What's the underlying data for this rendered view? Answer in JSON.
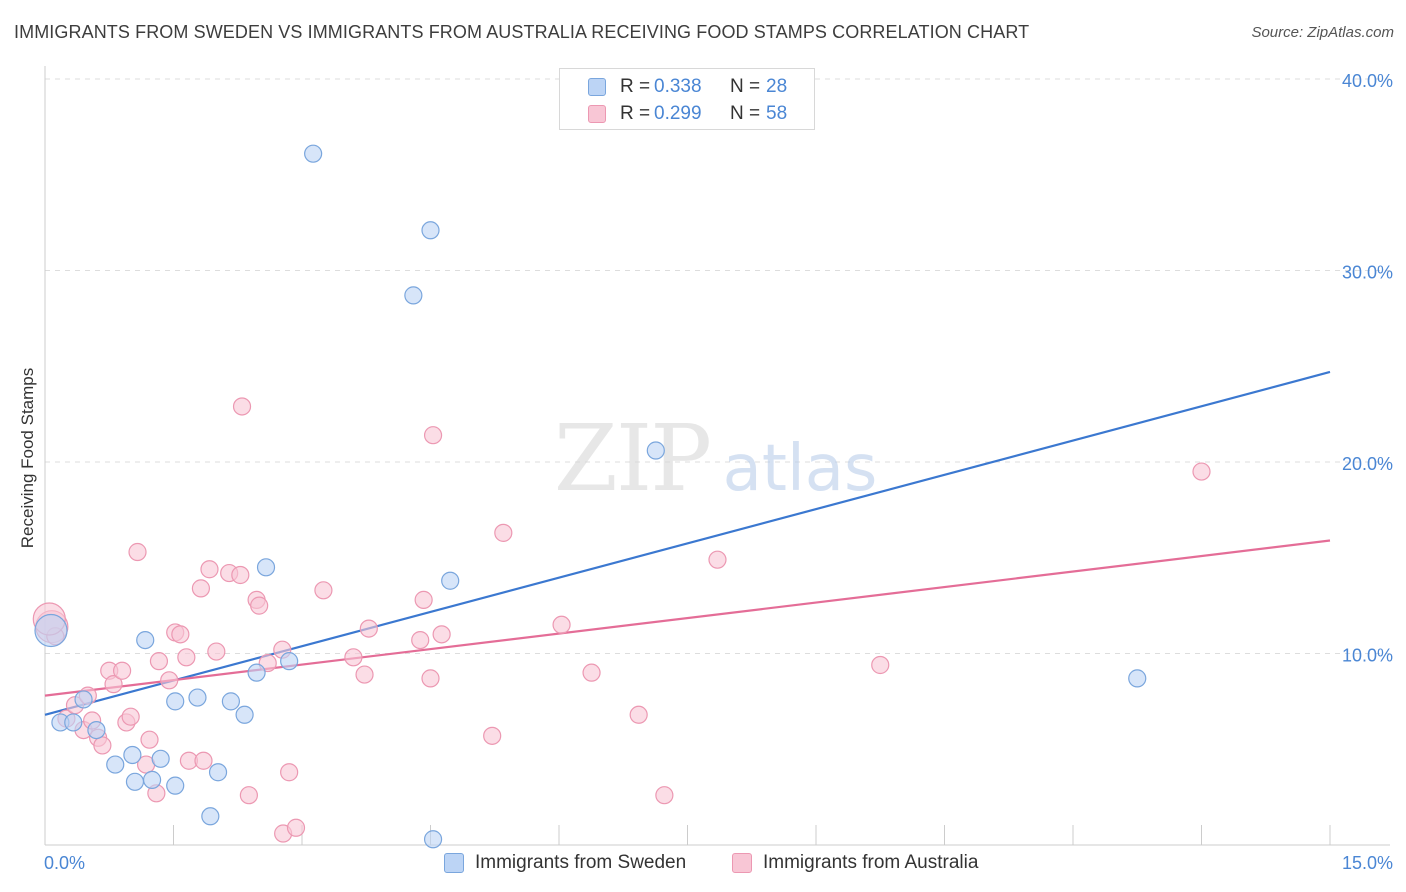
{
  "title": "IMMIGRANTS FROM SWEDEN VS IMMIGRANTS FROM AUSTRALIA RECEIVING FOOD STAMPS CORRELATION CHART",
  "source": "Source: ZipAtlas.com",
  "watermark": {
    "zip": "ZIP",
    "atlas": "atlas"
  },
  "legend_top": {
    "rows": [
      {
        "r_label": "R =",
        "r_value": "0.338",
        "n_label": "N =",
        "n_value": "28"
      },
      {
        "r_label": "R =",
        "r_value": "0.299",
        "n_label": "N =",
        "n_value": "58"
      }
    ]
  },
  "legend_bottom": [
    "Immigrants from Sweden",
    "Immigrants from Australia"
  ],
  "colors": {
    "sweden_fill": "#bcd4f5",
    "sweden_stroke": "#7aa6dd",
    "sweden_line": "#3b78d0",
    "australia_fill": "#f8c6d5",
    "australia_stroke": "#ec98b2",
    "australia_line": "#e46d97",
    "tick_label": "#4a86d4",
    "grid": "#dddddd"
  },
  "chart_data": {
    "type": "scatter",
    "title": "IMMIGRANTS FROM SWEDEN VS IMMIGRANTS FROM AUSTRALIA RECEIVING FOOD STAMPS CORRELATION CHART",
    "xlabel": "",
    "ylabel": "Receiving Food Stamps",
    "xlim": [
      0,
      15
    ],
    "ylim": [
      0,
      40
    ],
    "x_tick_labels": [
      "0.0%",
      "15.0%"
    ],
    "y_ticks": [
      10,
      20,
      30,
      40
    ],
    "y_tick_labels": [
      "10.0%",
      "20.0%",
      "30.0%",
      "40.0%"
    ],
    "grid": true,
    "legend_position": "top-center",
    "series": [
      {
        "name": "Immigrants from Sweden",
        "r": 0.338,
        "n": 28,
        "trend": {
          "x": [
            0,
            15
          ],
          "y": [
            6.8,
            24.7
          ]
        },
        "points": [
          [
            0.07,
            11.2
          ],
          [
            0.18,
            6.4
          ],
          [
            0.33,
            6.4
          ],
          [
            0.45,
            7.6
          ],
          [
            0.6,
            6.0
          ],
          [
            0.82,
            4.2
          ],
          [
            1.02,
            4.7
          ],
          [
            1.05,
            3.3
          ],
          [
            1.17,
            10.7
          ],
          [
            1.25,
            3.4
          ],
          [
            1.35,
            4.5
          ],
          [
            1.52,
            3.1
          ],
          [
            1.52,
            7.5
          ],
          [
            1.78,
            7.7
          ],
          [
            1.93,
            1.5
          ],
          [
            2.02,
            3.8
          ],
          [
            2.17,
            7.5
          ],
          [
            2.33,
            6.8
          ],
          [
            2.47,
            9.0
          ],
          [
            2.58,
            14.5
          ],
          [
            2.85,
            9.6
          ],
          [
            3.13,
            36.1
          ],
          [
            4.3,
            28.7
          ],
          [
            4.5,
            32.1
          ],
          [
            4.53,
            0.3
          ],
          [
            4.73,
            13.8
          ],
          [
            7.13,
            20.6
          ],
          [
            12.75,
            8.7
          ]
        ]
      },
      {
        "name": "Immigrants from Australia",
        "r": 0.299,
        "n": 58,
        "trend": {
          "x": [
            0,
            15
          ],
          "y": [
            7.8,
            15.9
          ]
        },
        "points": [
          [
            0.08,
            11.4
          ],
          [
            0.12,
            10.9
          ],
          [
            0.25,
            6.6
          ],
          [
            0.35,
            7.3
          ],
          [
            0.45,
            6.0
          ],
          [
            0.5,
            7.8
          ],
          [
            0.55,
            6.5
          ],
          [
            0.62,
            5.6
          ],
          [
            0.67,
            5.2
          ],
          [
            0.75,
            9.1
          ],
          [
            0.8,
            8.4
          ],
          [
            0.9,
            9.1
          ],
          [
            0.95,
            6.4
          ],
          [
            1.0,
            6.7
          ],
          [
            1.08,
            15.3
          ],
          [
            1.18,
            4.2
          ],
          [
            1.22,
            5.5
          ],
          [
            1.3,
            2.7
          ],
          [
            1.33,
            9.6
          ],
          [
            1.45,
            8.6
          ],
          [
            1.52,
            11.1
          ],
          [
            1.58,
            11.0
          ],
          [
            1.65,
            9.8
          ],
          [
            1.68,
            4.4
          ],
          [
            1.82,
            13.4
          ],
          [
            1.85,
            4.4
          ],
          [
            1.92,
            14.4
          ],
          [
            2.0,
            10.1
          ],
          [
            2.15,
            14.2
          ],
          [
            2.28,
            14.1
          ],
          [
            2.3,
            22.9
          ],
          [
            2.38,
            2.6
          ],
          [
            2.47,
            12.8
          ],
          [
            2.5,
            12.5
          ],
          [
            2.6,
            9.5
          ],
          [
            2.77,
            10.2
          ],
          [
            2.78,
            0.6
          ],
          [
            2.85,
            3.8
          ],
          [
            2.93,
            0.9
          ],
          [
            3.25,
            13.3
          ],
          [
            3.6,
            9.8
          ],
          [
            3.73,
            8.9
          ],
          [
            3.78,
            11.3
          ],
          [
            4.38,
            10.7
          ],
          [
            4.42,
            12.8
          ],
          [
            4.5,
            8.7
          ],
          [
            4.53,
            21.4
          ],
          [
            4.63,
            11.0
          ],
          [
            5.22,
            5.7
          ],
          [
            5.35,
            16.3
          ],
          [
            6.03,
            11.5
          ],
          [
            6.38,
            9.0
          ],
          [
            6.93,
            6.8
          ],
          [
            7.23,
            2.6
          ],
          [
            7.85,
            14.9
          ],
          [
            9.75,
            9.4
          ],
          [
            13.5,
            19.5
          ],
          [
            0.05,
            11.8
          ]
        ]
      }
    ]
  }
}
